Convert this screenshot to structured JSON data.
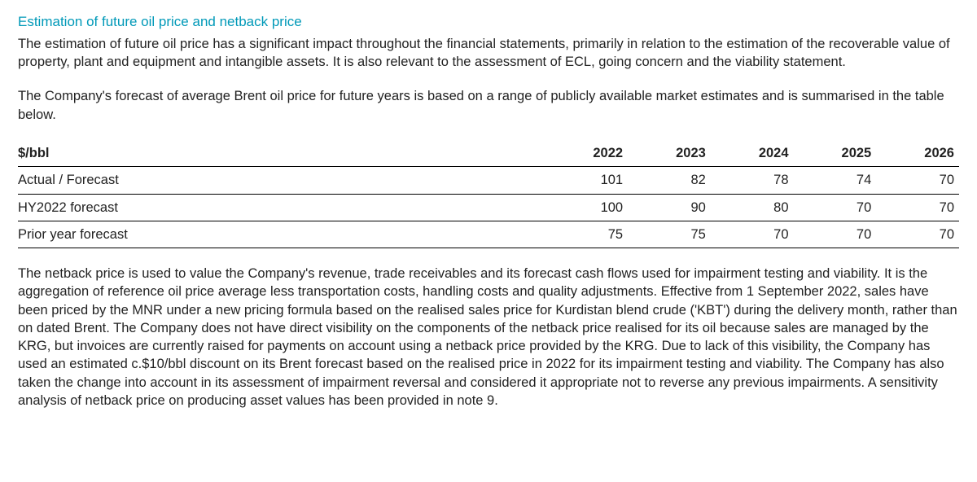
{
  "heading": "Estimation of future oil price and netback price",
  "para1": "The estimation of future oil price has a significant impact throughout the financial statements, primarily in relation to the estimation of the recoverable value of property, plant and equipment and intangible assets. It is also relevant to the assessment of ECL, going concern and the viability statement.",
  "para2": "The Company's forecast of average Brent oil price for future years is based on a range of publicly available market estimates and is summarised in the table below.",
  "table": {
    "unit_label": "$/bbl",
    "columns": [
      "2022",
      "2023",
      "2024",
      "2025",
      "2026"
    ],
    "rows": [
      {
        "label": "Actual / Forecast",
        "bold": true,
        "values": [
          "101",
          "82",
          "78",
          "74",
          "70"
        ]
      },
      {
        "label": "HY2022 forecast",
        "bold": false,
        "values": [
          "100",
          "90",
          "80",
          "70",
          "70"
        ]
      },
      {
        "label": "Prior year forecast",
        "bold": false,
        "values": [
          "75",
          "75",
          "70",
          "70",
          "70"
        ]
      }
    ]
  },
  "para3": "The netback price is used to value the Company's revenue, trade receivables and its forecast cash flows used for impairment testing and viability. It is the aggregation of reference oil price average less transportation costs, handling costs and quality adjustments. Effective from 1 September 2022, sales have been priced by the MNR under a new pricing formula based on the realised sales price for Kurdistan blend crude ('KBT') during the delivery month, rather than on dated Brent. The Company does not have direct visibility on the components of the netback price realised for its oil because sales are managed by the KRG, but invoices are currently raised for payments on account using a netback price provided by the KRG. Due to lack of this visibility, the Company has used an estimated c.$10/bbl discount on its Brent forecast based on the realised price in 2022 for its impairment testing and viability. The Company has also taken the change into account in its assessment of impairment reversal and considered it appropriate not to reverse any previous impairments. A sensitivity analysis of netback price on producing asset values has been provided in note 9."
}
